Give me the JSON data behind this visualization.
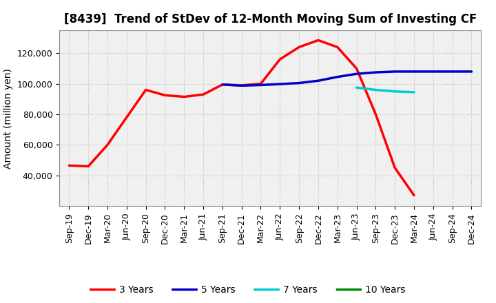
{
  "title": "[8439]  Trend of StDev of 12-Month Moving Sum of Investing CF",
  "ylabel": "Amount (million yen)",
  "background_color": "#ffffff",
  "plot_bg_color": "#f0f0f0",
  "grid_color": "#bbbbbb",
  "x_labels": [
    "Sep-19",
    "Dec-19",
    "Mar-20",
    "Jun-20",
    "Sep-20",
    "Dec-20",
    "Mar-21",
    "Jun-21",
    "Sep-21",
    "Dec-21",
    "Mar-22",
    "Jun-22",
    "Sep-22",
    "Dec-22",
    "Mar-23",
    "Jun-23",
    "Sep-23",
    "Dec-23",
    "Mar-24",
    "Jun-24",
    "Sep-24",
    "Dec-24"
  ],
  "series": {
    "3 Years": {
      "color": "#ff0000",
      "linewidth": 2.5,
      "data_x": [
        0,
        1,
        2,
        3,
        4,
        5,
        6,
        7,
        8,
        9,
        10,
        11,
        12,
        13,
        14,
        15,
        16,
        17,
        18
      ],
      "data_y": [
        46500,
        46000,
        60000,
        78000,
        96000,
        92500,
        91500,
        93000,
        99500,
        99000,
        100000,
        116000,
        124000,
        128500,
        124000,
        110000,
        80000,
        45000,
        27000
      ]
    },
    "5 Years": {
      "color": "#0000cc",
      "linewidth": 2.5,
      "data_x": [
        8,
        9,
        10,
        11,
        12,
        13,
        14,
        15,
        16,
        17,
        18,
        19,
        20,
        21
      ],
      "data_y": [
        99500,
        98800,
        99200,
        99800,
        100500,
        102000,
        104500,
        106500,
        107500,
        108000,
        108000,
        108000,
        108000,
        108000
      ]
    },
    "7 Years": {
      "color": "#00cccc",
      "linewidth": 2.5,
      "data_x": [
        15,
        16,
        17,
        18
      ],
      "data_y": [
        97500,
        96000,
        95000,
        94500
      ]
    },
    "10 Years": {
      "color": "#008800",
      "linewidth": 2.5,
      "data_x": [],
      "data_y": []
    }
  },
  "ylim": [
    20000,
    135000
  ],
  "yticks": [
    40000,
    60000,
    80000,
    100000,
    120000
  ],
  "title_fontsize": 12,
  "label_fontsize": 10,
  "tick_fontsize": 9
}
